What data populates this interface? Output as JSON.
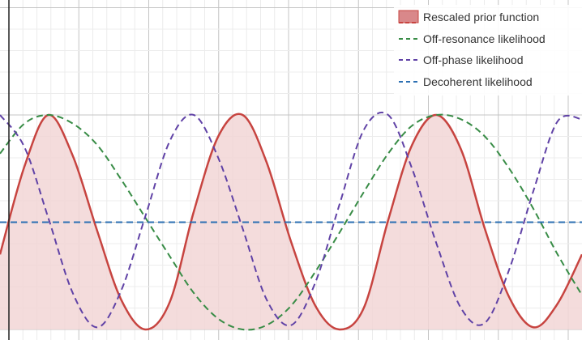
{
  "chart_data": {
    "type": "line",
    "title": "",
    "xlabel": "",
    "ylabel": "",
    "xlim": [
      0,
      1
    ],
    "ylim": [
      0,
      1
    ],
    "grid": true,
    "legend_position": "top-right",
    "series": [
      {
        "name": "Rescaled prior function",
        "style": "filled",
        "color": "#c74440",
        "fill": "#f2d6d6",
        "x": [
          0,
          0.042,
          0.083,
          0.125,
          0.167,
          0.208,
          0.25,
          0.292,
          0.333,
          0.375,
          0.417,
          0.458,
          0.5,
          0.542,
          0.583,
          0.625,
          0.667,
          0.708,
          0.75,
          0.792,
          0.833,
          0.875,
          0.917,
          0.958,
          1
        ],
        "values": [
          0.35,
          0.76,
          1.0,
          0.81,
          0.46,
          0.14,
          0.0,
          0.13,
          0.55,
          0.9,
          1.0,
          0.78,
          0.41,
          0.11,
          0.0,
          0.1,
          0.51,
          0.86,
          1.0,
          0.84,
          0.47,
          0.15,
          0.01,
          0.12,
          0.35
        ]
      },
      {
        "name": "Off-resonance likelihood",
        "style": "dashed",
        "color": "#388c46",
        "x": [
          0,
          0.042,
          0.083,
          0.125,
          0.167,
          0.208,
          0.25,
          0.292,
          0.333,
          0.375,
          0.417,
          0.458,
          0.5,
          0.542,
          0.583,
          0.625,
          0.667,
          0.708,
          0.75,
          0.792,
          0.833,
          0.875,
          0.917,
          0.958,
          1
        ],
        "values": [
          0.82,
          0.96,
          1.0,
          0.96,
          0.86,
          0.7,
          0.52,
          0.34,
          0.17,
          0.05,
          0.0,
          0.02,
          0.11,
          0.27,
          0.45,
          0.64,
          0.82,
          0.95,
          1.0,
          0.98,
          0.9,
          0.75,
          0.56,
          0.35,
          0.16
        ]
      },
      {
        "name": "Off-phase likelihood",
        "style": "dashed",
        "color": "#6042a6",
        "x": [
          0,
          0.042,
          0.083,
          0.125,
          0.167,
          0.208,
          0.25,
          0.292,
          0.333,
          0.375,
          0.417,
          0.458,
          0.5,
          0.542,
          0.583,
          0.625,
          0.667,
          0.708,
          0.75,
          0.792,
          0.833,
          0.875,
          0.917,
          0.958,
          1
        ],
        "values": [
          1.0,
          0.85,
          0.52,
          0.17,
          0.01,
          0.18,
          0.53,
          0.88,
          1.0,
          0.8,
          0.47,
          0.14,
          0.02,
          0.22,
          0.58,
          0.93,
          1.0,
          0.75,
          0.4,
          0.1,
          0.03,
          0.28,
          0.65,
          0.97,
          0.98
        ]
      },
      {
        "name": "Decoherent likelihood",
        "style": "dashed",
        "color": "#2d70b3",
        "x": [
          0,
          1
        ],
        "values": [
          0.5,
          0.5
        ]
      }
    ]
  },
  "colors": {
    "background": "#ffffff",
    "grid_minor": "#ececec",
    "grid_major": "#c4c4c4",
    "axis": "#222222",
    "prior_stroke": "#c74440",
    "prior_fill": "#f2d6d6",
    "off_resonance": "#388c46",
    "off_phase": "#6042a6",
    "decoherent": "#2d70b3"
  }
}
